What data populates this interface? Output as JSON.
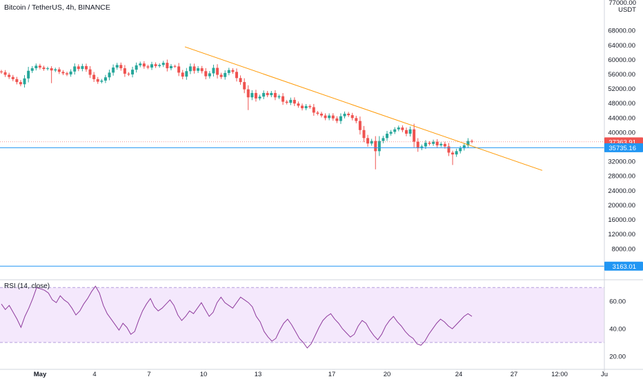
{
  "header": {
    "title": "Bitcoin / TetherUS, 4h, BINANCE",
    "unit_top": "77000.00",
    "unit": "USDT"
  },
  "chart_data": [
    {
      "type": "candlestick",
      "title": "Bitcoin / TetherUS, 4h, BINANCE",
      "ylabel": "USDT",
      "ylim": [
        0,
        76000
      ],
      "yticks": [
        "68000.00",
        "64000.00",
        "60000.00",
        "56000.00",
        "52000.00",
        "48000.00",
        "44000.00",
        "40000.00",
        "36000.00",
        "32000.00",
        "28000.00",
        "24000.00",
        "20000.00",
        "16000.00",
        "12000.00",
        "8000.00"
      ],
      "ytick_values": [
        68000,
        64000,
        60000,
        56000,
        52000,
        48000,
        44000,
        40000,
        36000,
        32000,
        28000,
        24000,
        20000,
        16000,
        12000,
        8000
      ],
      "xticks": [
        "May",
        "4",
        "7",
        "10",
        "13",
        "17",
        "20",
        "24",
        "27",
        "12:00",
        "Ju"
      ],
      "price_labels": [
        {
          "value": 37363.91,
          "text": "37363.91",
          "color": "#ef5350"
        },
        {
          "value": 35735.16,
          "text": "35735.16",
          "color": "#2196f3"
        },
        {
          "value": 3163.01,
          "text": "3163.01",
          "color": "#2196f3"
        }
      ],
      "horizontal_lines": [
        {
          "value": 35735.16,
          "color": "#2196f3"
        },
        {
          "value": 3163.01,
          "color": "#2196f3"
        }
      ],
      "trendline": {
        "color": "#ff9800",
        "from": {
          "x": "May 9",
          "y": 63500
        },
        "to": {
          "x": "May 26",
          "y": 29500
        }
      },
      "closes": [
        56500,
        55800,
        55200,
        54600,
        53800,
        53200,
        54800,
        56900,
        57600,
        58300,
        57800,
        57400,
        57600,
        57000,
        57300,
        56600,
        56200,
        55900,
        56700,
        58100,
        57400,
        58200,
        57300,
        55800,
        54600,
        53900,
        54200,
        55100,
        56400,
        57800,
        58500,
        57600,
        56100,
        55900,
        57200,
        58400,
        58900,
        58100,
        57800,
        58700,
        58200,
        58500,
        59100,
        57600,
        58200,
        58100,
        56400,
        55300,
        56800,
        58100,
        56900,
        57600,
        56800,
        55400,
        56200,
        57700,
        55800,
        55200,
        56300,
        57100,
        56600,
        54900,
        53800,
        51800,
        49600,
        50800,
        49300,
        49800,
        50800,
        50200,
        50800,
        49600,
        49900,
        48400,
        48100,
        48900,
        47900,
        47300,
        46600,
        47200,
        46900,
        45400,
        45100,
        44600,
        43900,
        44600,
        43800,
        43100,
        44400,
        45100,
        44700,
        43900,
        43100,
        40600,
        38400,
        36900,
        37600,
        34800,
        37600,
        38400,
        39600,
        40100,
        40800,
        41300,
        40600,
        39600,
        40800,
        37400,
        35600,
        36100,
        37100,
        36800,
        37400,
        36400,
        36800,
        36100,
        34400,
        33900,
        34800,
        35600,
        36400,
        37600,
        37400
      ]
    },
    {
      "type": "line",
      "title": "RSI (14, close)",
      "ylim": [
        16,
        72
      ],
      "yticks": [
        "60.00",
        "40.00",
        "20.00"
      ],
      "ytick_values": [
        60,
        40,
        20
      ],
      "bands": [
        70,
        30
      ],
      "values": [
        58,
        54,
        57,
        52,
        47,
        41,
        49,
        55,
        62,
        70,
        69,
        68,
        66,
        61,
        59,
        64,
        61,
        59,
        55,
        50,
        53,
        58,
        62,
        67,
        71,
        66,
        57,
        51,
        47,
        43,
        39,
        44,
        41,
        36,
        38,
        46,
        53,
        58,
        62,
        56,
        53,
        55,
        58,
        61,
        57,
        50,
        46,
        49,
        53,
        51,
        55,
        59,
        54,
        49,
        52,
        59,
        63,
        59,
        57,
        55,
        59,
        63,
        61,
        59,
        56,
        49,
        45,
        38,
        34,
        31,
        33,
        39,
        44,
        47,
        43,
        38,
        33,
        30,
        26,
        29,
        35,
        41,
        46,
        49,
        51,
        47,
        44,
        40,
        37,
        34,
        36,
        42,
        46,
        44,
        39,
        35,
        32,
        36,
        42,
        46,
        49,
        45,
        42,
        38,
        35,
        33,
        29,
        28,
        31,
        36,
        40,
        44,
        47,
        45,
        42,
        40,
        43,
        46,
        49,
        51,
        49
      ]
    }
  ],
  "rsi": {
    "label": "RSI (14, close)"
  }
}
